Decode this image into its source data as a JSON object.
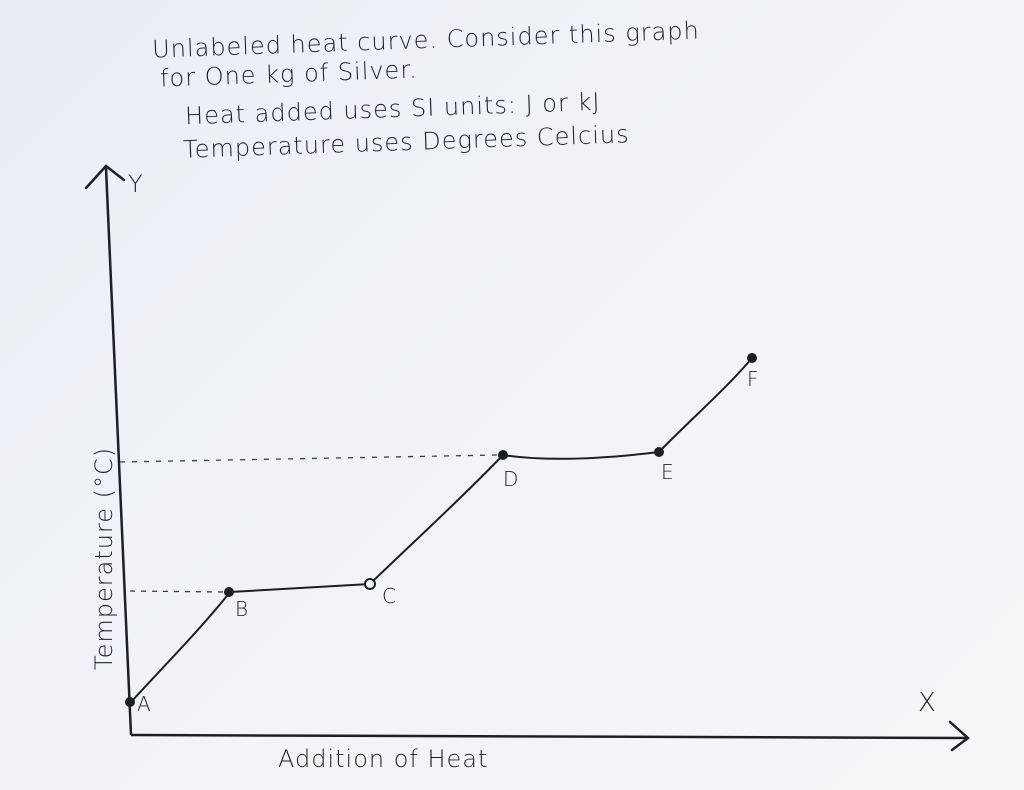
{
  "notes": {
    "line1": "Unlabeled heat curve. Consider this graph",
    "line2": "for One kg of Silver.",
    "line3": "Heat added uses SI units: J or kJ",
    "line4": "Temperature uses Degrees Celcius"
  },
  "axes": {
    "y_letter": "Y",
    "x_letter": "X",
    "x_title": "Addition of Heat",
    "y_title": "Temperature (°C)"
  },
  "points": [
    {
      "id": "A",
      "label": "A"
    },
    {
      "id": "B",
      "label": "B"
    },
    {
      "id": "C",
      "label": "C"
    },
    {
      "id": "D",
      "label": "D"
    },
    {
      "id": "E",
      "label": "E"
    },
    {
      "id": "F",
      "label": "F"
    }
  ],
  "colors": {
    "ink": "#1c1f26",
    "paper": "#eef1f6"
  }
}
